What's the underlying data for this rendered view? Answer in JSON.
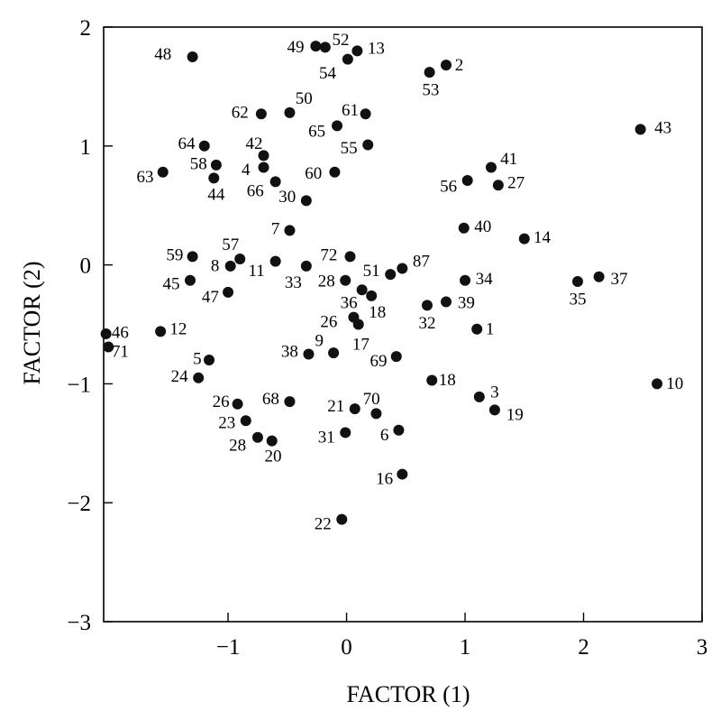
{
  "chart_data": {
    "type": "scatter",
    "xlabel": "FACTOR (1)",
    "ylabel": "FACTOR (2)",
    "xlim": [
      -2.05,
      3.0
    ],
    "ylim": [
      -3.0,
      2.0
    ],
    "x_ticks": [
      -1,
      0,
      1,
      2,
      3
    ],
    "x_tick_labels": [
      "−1",
      "0",
      "1",
      "2",
      "3"
    ],
    "y_ticks": [
      2,
      1,
      0,
      -1,
      -2,
      -3
    ],
    "y_tick_labels": [
      "2",
      "1",
      "0",
      "−1",
      "−2",
      "−3"
    ],
    "grid": false,
    "marker_color": "#111111",
    "points": [
      {
        "label": "48",
        "x": -1.3,
        "y": 1.75,
        "lx": -1.55,
        "ly": 1.78
      },
      {
        "label": "49",
        "x": -0.26,
        "y": 1.84,
        "lx": -0.43,
        "ly": 1.84
      },
      {
        "label": "52",
        "x": -0.18,
        "y": 1.83,
        "lx": -0.05,
        "ly": 1.9
      },
      {
        "label": "13",
        "x": 0.09,
        "y": 1.8,
        "lx": 0.25,
        "ly": 1.83
      },
      {
        "label": "54",
        "x": 0.01,
        "y": 1.73,
        "lx": -0.16,
        "ly": 1.62
      },
      {
        "label": "2",
        "x": 0.84,
        "y": 1.68,
        "lx": 0.95,
        "ly": 1.69
      },
      {
        "label": "53",
        "x": 0.7,
        "y": 1.62,
        "lx": 0.71,
        "ly": 1.48
      },
      {
        "label": "62",
        "x": -0.72,
        "y": 1.27,
        "lx": -0.9,
        "ly": 1.29
      },
      {
        "label": "50",
        "x": -0.48,
        "y": 1.28,
        "lx": -0.36,
        "ly": 1.41
      },
      {
        "label": "61",
        "x": 0.16,
        "y": 1.27,
        "lx": 0.03,
        "ly": 1.31
      },
      {
        "label": "65",
        "x": -0.08,
        "y": 1.17,
        "lx": -0.25,
        "ly": 1.13
      },
      {
        "label": "43",
        "x": 2.48,
        "y": 1.14,
        "lx": 2.67,
        "ly": 1.16
      },
      {
        "label": "64",
        "x": -1.2,
        "y": 1.0,
        "lx": -1.35,
        "ly": 1.03
      },
      {
        "label": "42",
        "x": -0.7,
        "y": 0.92,
        "lx": -0.78,
        "ly": 1.03
      },
      {
        "label": "55",
        "x": 0.18,
        "y": 1.01,
        "lx": 0.02,
        "ly": 0.99
      },
      {
        "label": "58",
        "x": -1.1,
        "y": 0.84,
        "lx": -1.25,
        "ly": 0.86
      },
      {
        "label": "41",
        "x": 1.22,
        "y": 0.82,
        "lx": 1.37,
        "ly": 0.9
      },
      {
        "label": "4",
        "x": -0.7,
        "y": 0.82,
        "lx": -0.85,
        "ly": 0.81
      },
      {
        "label": "60",
        "x": -0.1,
        "y": 0.78,
        "lx": -0.28,
        "ly": 0.78
      },
      {
        "label": "63",
        "x": -1.55,
        "y": 0.78,
        "lx": -1.7,
        "ly": 0.75
      },
      {
        "label": "44",
        "x": -1.12,
        "y": 0.73,
        "lx": -1.1,
        "ly": 0.6
      },
      {
        "label": "56",
        "x": 1.02,
        "y": 0.71,
        "lx": 0.86,
        "ly": 0.67
      },
      {
        "label": "66",
        "x": -0.6,
        "y": 0.7,
        "lx": -0.77,
        "ly": 0.63
      },
      {
        "label": "27",
        "x": 1.28,
        "y": 0.67,
        "lx": 1.43,
        "ly": 0.7
      },
      {
        "label": "30",
        "x": -0.34,
        "y": 0.54,
        "lx": -0.5,
        "ly": 0.58
      },
      {
        "label": "7",
        "x": -0.48,
        "y": 0.29,
        "lx": -0.6,
        "ly": 0.31
      },
      {
        "label": "40",
        "x": 0.99,
        "y": 0.31,
        "lx": 1.15,
        "ly": 0.33
      },
      {
        "label": "14",
        "x": 1.5,
        "y": 0.22,
        "lx": 1.65,
        "ly": 0.24
      },
      {
        "label": "59",
        "x": -1.3,
        "y": 0.07,
        "lx": -1.45,
        "ly": 0.09
      },
      {
        "label": "57",
        "x": -0.9,
        "y": 0.05,
        "lx": -0.98,
        "ly": 0.18
      },
      {
        "label": "72",
        "x": 0.03,
        "y": 0.07,
        "lx": -0.15,
        "ly": 0.09
      },
      {
        "label": "87",
        "x": 0.47,
        "y": -0.03,
        "lx": 0.63,
        "ly": 0.04
      },
      {
        "label": "8",
        "x": -0.98,
        "y": -0.01,
        "lx": -1.11,
        "ly": 0.0
      },
      {
        "label": "11",
        "x": -0.6,
        "y": 0.03,
        "lx": -0.76,
        "ly": -0.04
      },
      {
        "label": "0_33",
        "x": -0.34,
        "y": -0.01,
        "lx": -0.45,
        "ly": -0.14
      },
      {
        "label": "51",
        "x": 0.37,
        "y": -0.08,
        "lx": 0.21,
        "ly": -0.04
      },
      {
        "label": "28",
        "x": -0.01,
        "y": -0.13,
        "lx": -0.17,
        "ly": -0.13
      },
      {
        "label": "34",
        "x": 1.0,
        "y": -0.13,
        "lx": 1.16,
        "ly": -0.11
      },
      {
        "label": "37",
        "x": 2.13,
        "y": -0.1,
        "lx": 2.3,
        "ly": -0.11
      },
      {
        "label": "35",
        "x": 1.95,
        "y": -0.14,
        "lx": 1.95,
        "ly": -0.28
      },
      {
        "label": "45",
        "x": -1.32,
        "y": -0.13,
        "lx": -1.48,
        "ly": -0.15
      },
      {
        "label": "47",
        "x": -1.0,
        "y": -0.23,
        "lx": -1.15,
        "ly": -0.26
      },
      {
        "label": "36",
        "x": 0.13,
        "y": -0.21,
        "lx": 0.02,
        "ly": -0.31
      },
      {
        "label": "18",
        "x": 0.21,
        "y": -0.26,
        "lx": 0.26,
        "ly": -0.39
      },
      {
        "label": "32",
        "x": 0.68,
        "y": -0.34,
        "lx": 0.68,
        "ly": -0.48
      },
      {
        "label": "39",
        "x": 0.84,
        "y": -0.31,
        "lx": 1.01,
        "ly": -0.31
      },
      {
        "label": "26",
        "x": 0.06,
        "y": -0.44,
        "lx": -0.15,
        "ly": -0.47
      },
      {
        "label": "46",
        "x": -2.03,
        "y": -0.58,
        "lx": -1.91,
        "ly": -0.56
      },
      {
        "label": "12",
        "x": -1.57,
        "y": -0.56,
        "lx": -1.42,
        "ly": -0.53
      },
      {
        "label": "1",
        "x": 1.1,
        "y": -0.54,
        "lx": 1.21,
        "ly": -0.53
      },
      {
        "label": "0_17",
        "x": 0.1,
        "y": -0.5,
        "lx": 0.12,
        "ly": -0.66
      },
      {
        "label": "71",
        "x": -2.01,
        "y": -0.69,
        "lx": -1.91,
        "ly": -0.72
      },
      {
        "label": "9",
        "x": -0.11,
        "y": -0.74,
        "lx": -0.23,
        "ly": -0.63
      },
      {
        "label": "38",
        "x": -0.32,
        "y": -0.75,
        "lx": -0.48,
        "ly": -0.72
      },
      {
        "label": "69",
        "x": 0.42,
        "y": -0.77,
        "lx": 0.27,
        "ly": -0.8
      },
      {
        "label": "5",
        "x": -1.16,
        "y": -0.8,
        "lx": -1.26,
        "ly": -0.78
      },
      {
        "label": "24",
        "x": -1.25,
        "y": -0.95,
        "lx": -1.41,
        "ly": -0.93
      },
      {
        "label": "18",
        "x": 0.72,
        "y": -0.97,
        "lx": 0.85,
        "ly": -0.96
      },
      {
        "label": "10",
        "x": 2.62,
        "y": -1.0,
        "lx": 2.77,
        "ly": -0.99
      },
      {
        "label": "3",
        "x": 1.12,
        "y": -1.11,
        "lx": 1.25,
        "ly": -1.06
      },
      {
        "label": "26",
        "x": -0.92,
        "y": -1.17,
        "lx": -1.06,
        "ly": -1.14
      },
      {
        "label": "68",
        "x": -0.48,
        "y": -1.15,
        "lx": -0.64,
        "ly": -1.12
      },
      {
        "label": "21",
        "x": 0.07,
        "y": -1.21,
        "lx": -0.09,
        "ly": -1.18
      },
      {
        "label": "70",
        "x": 0.25,
        "y": -1.25,
        "lx": 0.21,
        "ly": -1.12
      },
      {
        "label": "19",
        "x": 1.25,
        "y": -1.22,
        "lx": 1.42,
        "ly": -1.25
      },
      {
        "label": "23",
        "x": -0.85,
        "y": -1.31,
        "lx": -1.01,
        "ly": -1.32
      },
      {
        "label": "6",
        "x": 0.44,
        "y": -1.39,
        "lx": 0.32,
        "ly": -1.42
      },
      {
        "label": "31",
        "x": -0.01,
        "y": -1.41,
        "lx": -0.17,
        "ly": -1.44
      },
      {
        "label": "28",
        "x": -0.75,
        "y": -1.45,
        "lx": -0.92,
        "ly": -1.51
      },
      {
        "label": "20",
        "x": -0.63,
        "y": -1.48,
        "lx": -0.62,
        "ly": -1.6
      },
      {
        "label": "16",
        "x": 0.47,
        "y": -1.76,
        "lx": 0.32,
        "ly": -1.79
      },
      {
        "label": "22",
        "x": -0.04,
        "y": -2.14,
        "lx": -0.2,
        "ly": -2.17
      }
    ]
  }
}
